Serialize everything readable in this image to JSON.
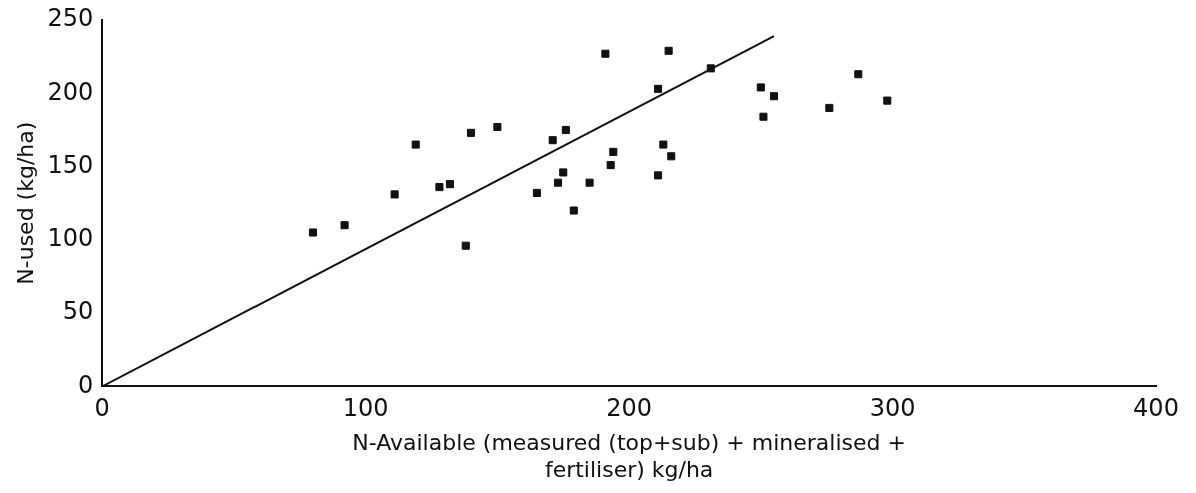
{
  "chart_data": {
    "type": "scatter",
    "xlabel": "N-Available (measured (top+sub) + mineralised + fertiliser) kg/ha",
    "ylabel": "N-used (kg/ha)",
    "xlim": [
      0,
      400
    ],
    "ylim": [
      0,
      250
    ],
    "xticks": [
      0,
      100,
      200,
      300,
      400
    ],
    "yticks": [
      0,
      50,
      100,
      150,
      200,
      250
    ],
    "grid": false,
    "legend": false,
    "marker": "square",
    "series": [
      {
        "color": "#111111",
        "x": [
          80,
          92,
          111,
          119,
          128,
          132,
          138,
          140,
          150,
          165,
          171,
          176,
          173,
          175,
          179,
          185,
          191,
          193,
          194,
          215,
          211,
          213,
          216,
          211,
          231,
          250,
          255,
          251,
          276,
          287,
          298
        ],
        "values": [
          105,
          110,
          131,
          165,
          136,
          138,
          96,
          173,
          177,
          132,
          168,
          175,
          139,
          146,
          120,
          139,
          227,
          151,
          160,
          229,
          203,
          165,
          157,
          144,
          217,
          204,
          198,
          184,
          190,
          213,
          195
        ]
      },
      {
        "type": "line",
        "color": "#111111",
        "line_style": "solid",
        "marker": "none",
        "x": [
          0,
          255
        ],
        "values": [
          0,
          239
        ]
      }
    ]
  }
}
